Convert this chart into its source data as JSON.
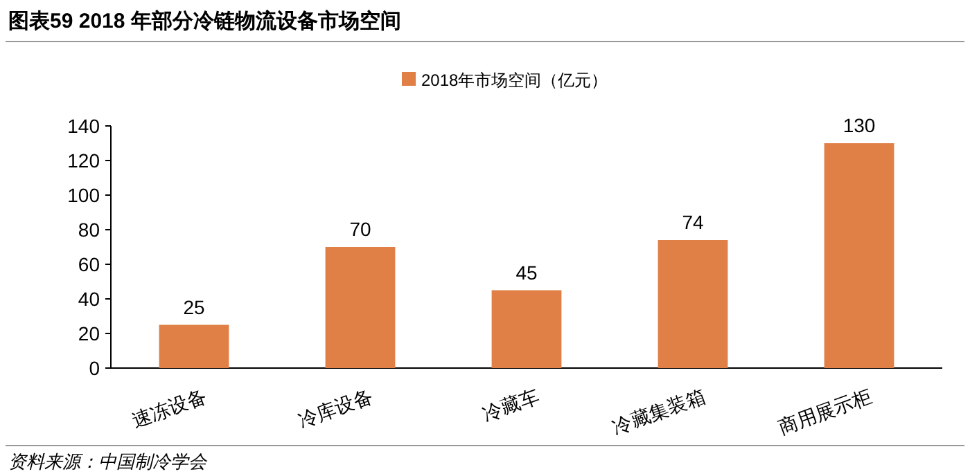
{
  "chart_data": {
    "type": "bar",
    "title": "图表59    2018 年部分冷链物流设备市场空间",
    "categories": [
      "速冻设备",
      "冷库设备",
      "冷藏车",
      "冷藏集装箱",
      "商用展示柜"
    ],
    "series": [
      {
        "name": "2018年市场空间（亿元）",
        "color": "#e07f46",
        "values": [
          25,
          70,
          45,
          74,
          130
        ]
      }
    ],
    "ylim": [
      0,
      140
    ],
    "yticks": [
      0,
      20,
      40,
      60,
      80,
      100,
      120,
      140
    ],
    "data_labels": true,
    "grid": false,
    "legend": "top",
    "annotations": [
      "资料来源：中国制冷学会"
    ]
  }
}
